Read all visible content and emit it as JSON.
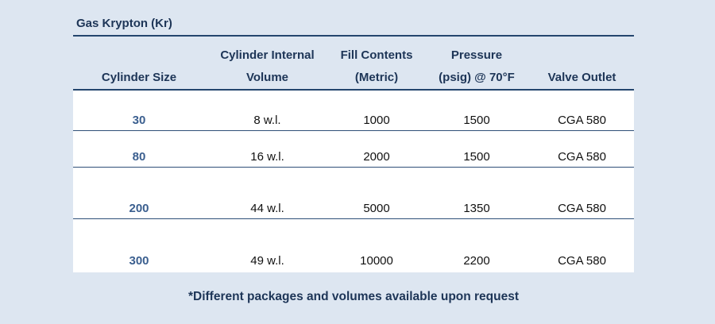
{
  "title": "Gas Krypton (Kr)",
  "headers": [
    "Cylinder Size",
    "Cylinder Internal Volume",
    "Fill Contents (Metric)",
    "Pressure (psig) @ 70°F",
    "Valve Outlet"
  ],
  "header_lines": [
    [
      "",
      "Cylinder Size"
    ],
    [
      "Cylinder Internal",
      "Volume"
    ],
    [
      "Fill Contents",
      "(Metric)"
    ],
    [
      "Pressure",
      "(psig) @ 70°F"
    ],
    [
      "",
      "Valve Outlet"
    ]
  ],
  "rows": [
    [
      "30",
      "8 w.l.",
      "1000",
      "1500",
      "CGA 580"
    ],
    [
      "80",
      "16 w.l.",
      "2000",
      "1500",
      "CGA 580"
    ],
    [
      "200",
      "44 w.l.",
      "5000",
      "1350",
      "CGA 580"
    ],
    [
      "300",
      "49 w.l.",
      "10000",
      "2200",
      "CGA 580"
    ]
  ],
  "footnote": "*Different packages and volumes available upon request",
  "colors": {
    "background": "#dde6f1",
    "heading": "#1d3557",
    "size_text": "#3b5f8f",
    "rule": "#24466e"
  }
}
